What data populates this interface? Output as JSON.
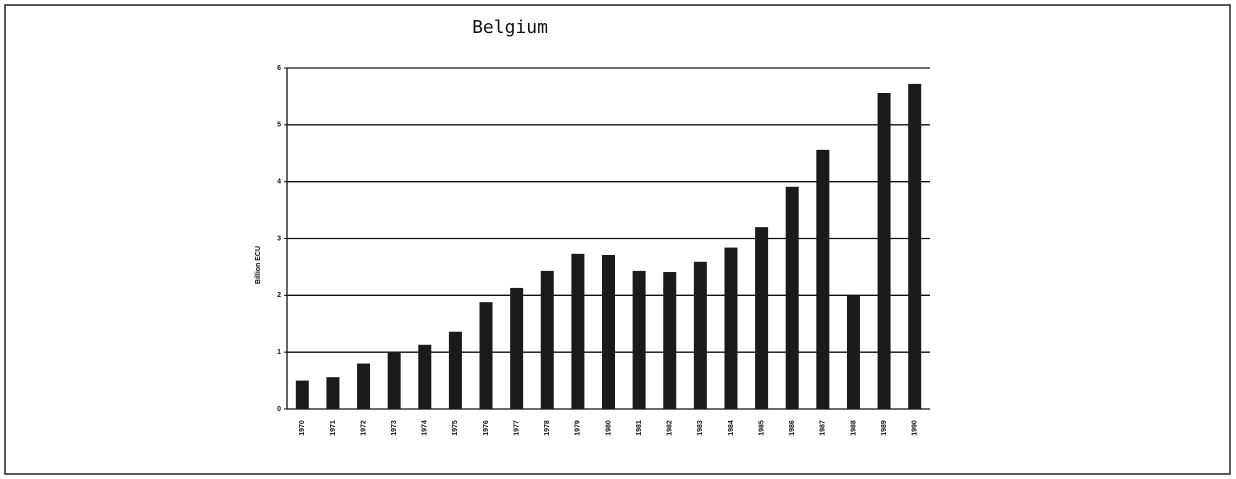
{
  "chart_data": {
    "type": "bar",
    "title": "Belgium",
    "y_label": "Billion ECU",
    "categories": [
      "1970",
      "1971",
      "1972",
      "1973",
      "1974",
      "1975",
      "1976",
      "1977",
      "1978",
      "1979",
      "1980",
      "1981",
      "1982",
      "1983",
      "1984",
      "1985",
      "1986",
      "1987",
      "1988",
      "1989",
      "1990"
    ],
    "values": [
      0.5,
      0.56,
      0.8,
      1.0,
      1.13,
      1.36,
      1.88,
      2.13,
      2.43,
      2.73,
      2.71,
      2.43,
      2.41,
      2.59,
      2.84,
      3.2,
      3.91,
      4.56,
      2.0,
      5.56,
      5.72
    ],
    "color": "#1a1a1a",
    "ylim": [
      0,
      6
    ],
    "yticks": [
      0,
      1,
      2,
      3,
      4,
      5,
      6
    ],
    "grid": true
  }
}
